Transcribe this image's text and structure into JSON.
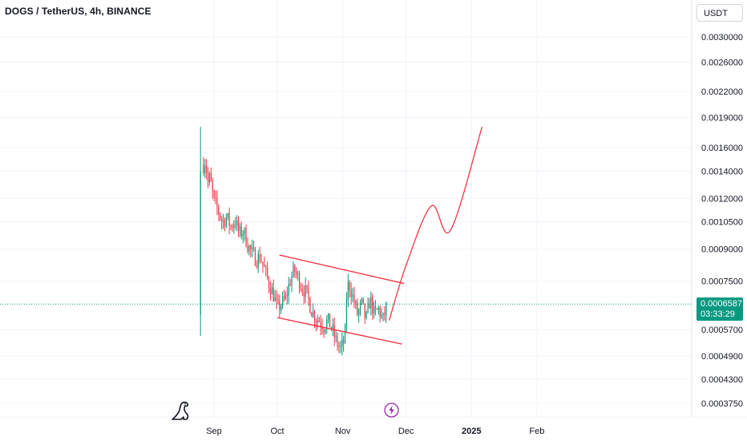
{
  "header": {
    "title": "DOGS / TetherUS, 4h, BINANCE",
    "currency": "USDT"
  },
  "last_price": {
    "value": "0.0006587",
    "countdown": "03:33:29",
    "color": "#089981"
  },
  "colors": {
    "up": "#089981",
    "down": "#f23645",
    "annotation": "#f23645",
    "grid": "#f0f3fa",
    "text": "#131722",
    "price_line": "#089981"
  },
  "icons": {
    "logo": "tradingview-dino-logo",
    "flash": "lightning-icon"
  },
  "chart_data": {
    "type": "candlestick",
    "symbol": "DOGS/USDT",
    "interval": "4h",
    "exchange": "BINANCE",
    "y_scale": "log",
    "ylim": [
      0.00036,
      0.0034
    ],
    "y_ticks": [
      "0.0030000",
      "0.0026000",
      "0.0022000",
      "0.0019000",
      "0.0016000",
      "0.0014000",
      "0.0012000",
      "0.0010500",
      "0.0009000",
      "0.0007500",
      "0.0005700",
      "0.0004900",
      "0.0004300",
      "0.0003750"
    ],
    "x_ticks": [
      "Sep",
      "Oct",
      "Nov",
      "Dec",
      "2025",
      "Feb"
    ],
    "x_tick_dates": [
      "2024-09-01",
      "2024-10-01",
      "2024-11-01",
      "2024-12-01",
      "2025-01-01",
      "2025-02-01"
    ],
    "first_candle": {
      "date": "2024-08-26",
      "open": 0.00062,
      "high": 0.0018,
      "low": 0.00055,
      "close": 0.0014
    },
    "close_path": [
      [
        "2024-08-27",
        0.00145
      ],
      [
        "2024-08-28",
        0.0015
      ],
      [
        "2024-08-29",
        0.0013
      ],
      [
        "2024-08-30",
        0.00135
      ],
      [
        "2024-09-01",
        0.00118
      ],
      [
        "2024-09-03",
        0.00112
      ],
      [
        "2024-09-05",
        0.00105
      ],
      [
        "2024-09-07",
        0.00108
      ],
      [
        "2024-09-09",
        0.00102
      ],
      [
        "2024-09-11",
        0.00106
      ],
      [
        "2024-09-13",
        0.00098
      ],
      [
        "2024-09-15",
        0.001
      ],
      [
        "2024-09-17",
        0.00092
      ],
      [
        "2024-09-19",
        0.00088
      ],
      [
        "2024-09-21",
        0.00085
      ],
      [
        "2024-09-23",
        0.00086
      ],
      [
        "2024-09-25",
        0.0008
      ],
      [
        "2024-09-27",
        0.00074
      ],
      [
        "2024-09-29",
        0.0007
      ],
      [
        "2024-10-01",
        0.00064
      ],
      [
        "2024-10-03",
        0.00066
      ],
      [
        "2024-10-05",
        0.00068
      ],
      [
        "2024-10-07",
        0.00075
      ],
      [
        "2024-10-09",
        0.0008
      ],
      [
        "2024-10-11",
        0.00076
      ],
      [
        "2024-10-13",
        0.00072
      ],
      [
        "2024-10-15",
        0.0007
      ],
      [
        "2024-10-17",
        0.00064
      ],
      [
        "2024-10-19",
        0.00061
      ],
      [
        "2024-10-21",
        0.0006
      ],
      [
        "2024-10-23",
        0.00058
      ],
      [
        "2024-10-25",
        0.0006
      ],
      [
        "2024-10-27",
        0.00057
      ],
      [
        "2024-10-29",
        0.00053
      ],
      [
        "2024-10-31",
        0.00051
      ],
      [
        "2024-11-02",
        0.00054
      ],
      [
        "2024-11-03",
        0.00072
      ],
      [
        "2024-11-04",
        0.00074
      ],
      [
        "2024-11-06",
        0.00068
      ],
      [
        "2024-11-08",
        0.00062
      ],
      [
        "2024-11-10",
        0.00066
      ],
      [
        "2024-11-12",
        0.0006
      ],
      [
        "2024-11-14",
        0.00068
      ],
      [
        "2024-11-16",
        0.00062
      ],
      [
        "2024-11-18",
        0.00064
      ],
      [
        "2024-11-20",
        0.0006
      ],
      [
        "2024-11-22",
        0.00066
      ]
    ],
    "annotations": [
      {
        "type": "trendline",
        "color": "#f23645",
        "from": [
          "2024-10-02",
          0.00087
        ],
        "to": [
          "2024-11-30",
          0.00074
        ]
      },
      {
        "type": "trendline",
        "color": "#f23645",
        "from": [
          "2024-10-01",
          0.00061
        ],
        "to": [
          "2024-11-29",
          0.000525
        ]
      },
      {
        "type": "projection_path",
        "color": "#f23645",
        "points": [
          [
            "2024-11-23",
            0.0006
          ],
          [
            "2024-12-01",
            0.00082
          ],
          [
            "2024-12-13",
            0.00115
          ],
          [
            "2024-12-22",
            0.001
          ],
          [
            "2025-01-06",
            0.0018
          ]
        ]
      }
    ]
  }
}
